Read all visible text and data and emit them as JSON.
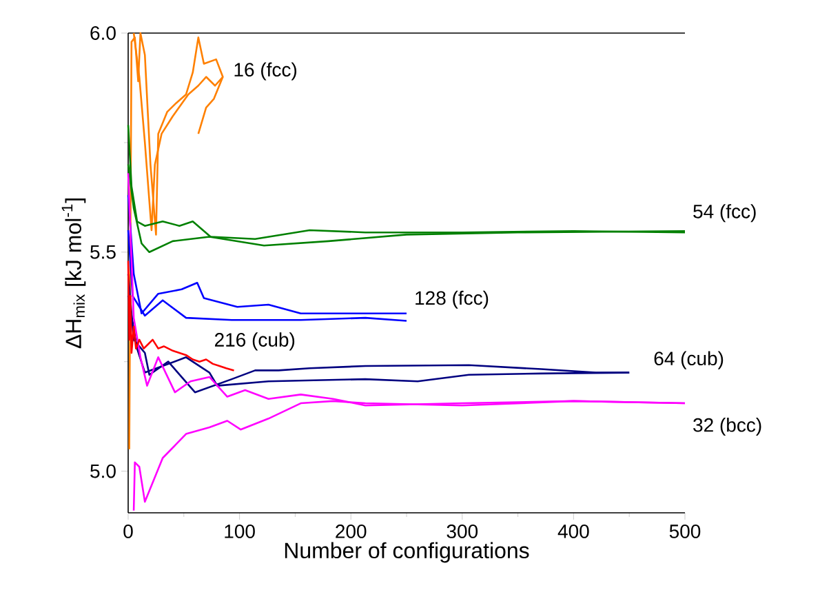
{
  "chart_data": {
    "type": "line",
    "xlabel": "Number of configurations",
    "ylabel": "ΔH$_{mix}$ [kJ mol$^{-1}$]",
    "xlim": [
      0,
      500
    ],
    "ylim": [
      4.905,
      6.0
    ],
    "xticks": [
      0,
      100,
      200,
      300,
      400,
      500
    ],
    "yticks": [
      {
        "value": 5.0,
        "label": "5.0"
      },
      {
        "value": 5.5,
        "label": "5.5"
      },
      {
        "value": 6.0,
        "label": "6.0"
      }
    ],
    "series": [
      {
        "color": "#ff8000",
        "x": [
          1,
          3,
          6,
          9,
          11,
          15,
          20,
          25,
          27,
          35,
          43,
          52,
          58,
          63,
          68,
          79,
          85,
          77,
          70,
          63
        ],
        "values": [
          5.05,
          5.98,
          5.99,
          5.89,
          6.0,
          5.95,
          5.7,
          5.54,
          5.77,
          5.82,
          5.84,
          5.86,
          5.91,
          5.99,
          5.93,
          5.94,
          5.9,
          5.85,
          5.83,
          5.77
        ]
      },
      {
        "name": "16 (fcc)",
        "color": "#ff8000",
        "x": [
          5,
          10,
          15,
          21,
          24,
          30,
          40,
          54,
          63,
          70,
          78,
          85
        ],
        "values": [
          6.0,
          5.9,
          5.75,
          5.55,
          5.7,
          5.77,
          5.81,
          5.86,
          5.88,
          5.9,
          5.88,
          5.9
        ]
      },
      {
        "name": "54 (fcc)",
        "color": "#008000",
        "x": [
          0,
          3,
          8,
          15,
          31,
          46,
          58,
          74,
          114,
          163,
          213,
          300,
          400,
          500
        ],
        "values": [
          5.79,
          5.65,
          5.57,
          5.56,
          5.57,
          5.56,
          5.57,
          5.535,
          5.53,
          5.55,
          5.545,
          5.545,
          5.548,
          5.545
        ]
      },
      {
        "color": "#008000",
        "x": [
          0,
          5,
          12,
          19,
          40,
          73,
          122,
          180,
          250,
          350,
          500
        ],
        "values": [
          5.7,
          5.6,
          5.52,
          5.5,
          5.525,
          5.535,
          5.515,
          5.525,
          5.54,
          5.545,
          5.548
        ]
      },
      {
        "name": "128 (fcc)",
        "color": "#0000ff",
        "x": [
          0,
          5,
          12,
          27,
          48,
          62,
          68,
          98,
          126,
          155,
          213,
          250
        ],
        "values": [
          5.63,
          5.45,
          5.36,
          5.405,
          5.415,
          5.43,
          5.395,
          5.375,
          5.38,
          5.36,
          5.36,
          5.36
        ]
      },
      {
        "color": "#0000ff",
        "x": [
          0,
          4,
          15,
          31,
          52,
          93,
          155,
          213,
          250
        ],
        "values": [
          5.55,
          5.4,
          5.355,
          5.39,
          5.35,
          5.345,
          5.345,
          5.35,
          5.343
        ]
      },
      {
        "name": "64 (cub)",
        "color": "#000080",
        "x": [
          0,
          5,
          15,
          19,
          36,
          60,
          93,
          114,
          135,
          163,
          213,
          306,
          371,
          420,
          450
        ],
        "values": [
          5.45,
          5.3,
          5.27,
          5.22,
          5.25,
          5.18,
          5.21,
          5.23,
          5.23,
          5.235,
          5.24,
          5.242,
          5.233,
          5.225,
          5.225
        ]
      },
      {
        "color": "#000080",
        "x": [
          0,
          8,
          15,
          52,
          73,
          80,
          126,
          213,
          260,
          306,
          371,
          450
        ],
        "values": [
          5.4,
          5.28,
          5.225,
          5.26,
          5.225,
          5.195,
          5.205,
          5.21,
          5.205,
          5.22,
          5.223,
          5.225
        ]
      },
      {
        "name": "32 (bcc)",
        "color": "#ff00ff",
        "x": [
          0,
          5,
          11,
          17,
          27,
          42,
          56,
          73,
          89,
          105,
          126,
          155,
          184,
          213,
          300,
          400,
          500
        ],
        "values": [
          5.68,
          5.35,
          5.26,
          5.195,
          5.26,
          5.18,
          5.205,
          5.215,
          5.17,
          5.185,
          5.165,
          5.175,
          5.165,
          5.15,
          5.155,
          5.16,
          5.155
        ]
      },
      {
        "color": "#ff00ff",
        "x": [
          5,
          6,
          10,
          15,
          31,
          52,
          73,
          89,
          101,
          126,
          155,
          184,
          213,
          300,
          400,
          500
        ],
        "values": [
          4.91,
          5.02,
          5.01,
          4.93,
          5.03,
          5.085,
          5.1,
          5.115,
          5.095,
          5.12,
          5.155,
          5.16,
          5.155,
          5.15,
          5.16,
          5.155
        ]
      },
      {
        "name": "216 (cub)",
        "color": "#ff0000",
        "x": [
          0,
          1,
          2,
          3,
          5,
          7,
          10,
          14,
          18,
          22,
          27,
          32,
          40,
          46,
          52,
          58,
          64,
          70,
          76,
          82,
          88,
          95
        ],
        "values": [
          5.48,
          5.3,
          5.4,
          5.27,
          5.33,
          5.28,
          5.3,
          5.28,
          5.29,
          5.3,
          5.28,
          5.285,
          5.275,
          5.27,
          5.265,
          5.255,
          5.25,
          5.255,
          5.245,
          5.24,
          5.235,
          5.23
        ]
      }
    ]
  }
}
